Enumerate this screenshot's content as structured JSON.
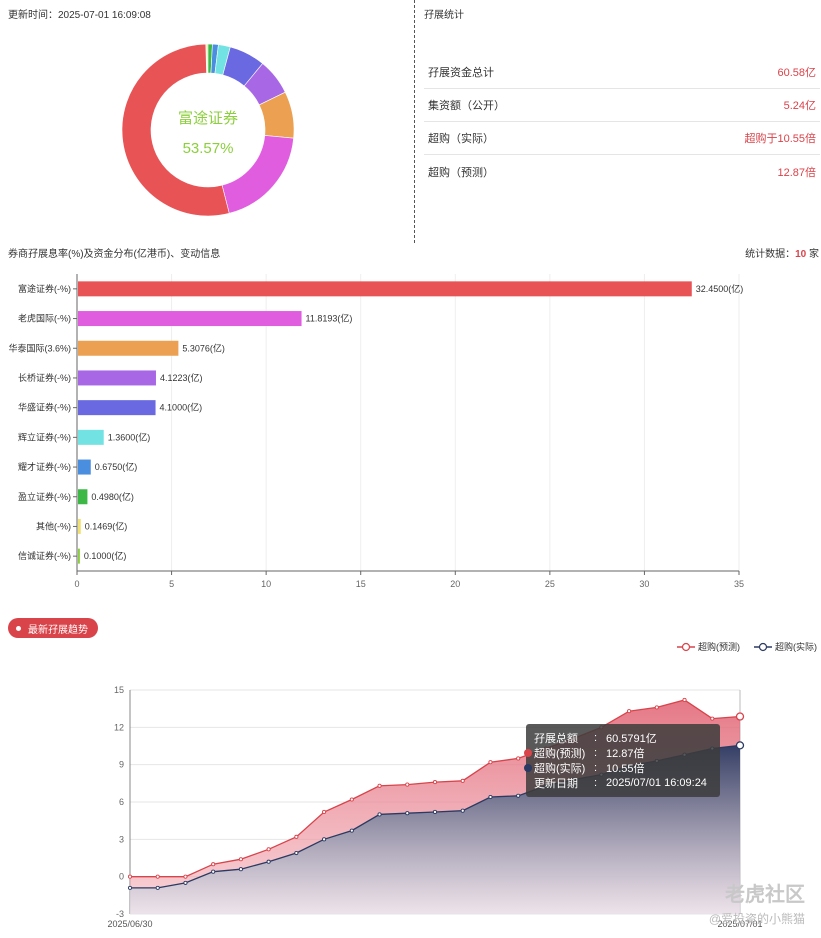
{
  "header": {
    "update_time": "更新时间：2025-07-01 16:09:08",
    "stats_title": "孖展统计"
  },
  "donut": {
    "center_name": "富途证券",
    "center_pct": "53.57%",
    "colors": {
      "main": "#e85456",
      "text": "#8ccf3c"
    },
    "slices": [
      {
        "name": "富途证券",
        "value": 32.45,
        "color": "#e85456"
      },
      {
        "name": "老虎国际",
        "value": 11.8193,
        "color": "#e05ddf"
      },
      {
        "name": "华泰国际",
        "value": 5.3076,
        "color": "#eba052"
      },
      {
        "name": "长桥证券",
        "value": 4.1223,
        "color": "#a868e6"
      },
      {
        "name": "华盛证券",
        "value": 4.1,
        "color": "#6a69e2"
      },
      {
        "name": "辉立证券",
        "value": 1.36,
        "color": "#72e2e2"
      },
      {
        "name": "耀才证券",
        "value": 0.675,
        "color": "#4a8ee0"
      },
      {
        "name": "盈立证券",
        "value": 0.498,
        "color": "#3db846"
      },
      {
        "name": "其他",
        "value": 0.1469,
        "color": "#f0e070"
      },
      {
        "name": "信诚证券",
        "value": 0.1,
        "color": "#8ccf3c"
      }
    ]
  },
  "stats": [
    {
      "label": "孖展资金总计",
      "value": "60.58亿"
    },
    {
      "label": "集资额（公开）",
      "value": "5.24亿"
    },
    {
      "label": "超购（实际）",
      "value": "超购于10.55倍"
    },
    {
      "label": "超购（预测）",
      "value": "12.87倍"
    }
  ],
  "bar_section": {
    "title": "券商孖展息率(%)及资金分布(亿港币)、变动信息",
    "count_prefix": "统计数据：",
    "count_value": "10",
    "count_suffix": " 家"
  },
  "chart_data": [
    {
      "type": "bar",
      "orientation": "horizontal",
      "categories": [
        "富途证券(-%)",
        "老虎国际(-%)",
        "华泰国际(3.6%)",
        "长桥证券(-%)",
        "华盛证券(-%)",
        "辉立证券(-%)",
        "耀才证券(-%)",
        "盈立证券(-%)",
        "其他(-%)",
        "信诚证券(-%)"
      ],
      "values": [
        32.45,
        11.8193,
        5.3076,
        4.1223,
        4.1,
        1.36,
        0.675,
        0.498,
        0.1469,
        0.1
      ],
      "value_labels": [
        "32.4500(亿)",
        "11.8193(亿)",
        "5.3076(亿)",
        "4.1223(亿)",
        "4.1000(亿)",
        "1.3600(亿)",
        "0.6750(亿)",
        "0.4980(亿)",
        "0.1469(亿)",
        "0.1000(亿)"
      ],
      "colors": [
        "#e85456",
        "#e05ddf",
        "#eba052",
        "#a868e6",
        "#6a69e2",
        "#72e2e2",
        "#4a8ee0",
        "#3db846",
        "#f0e070",
        "#8ccf3c"
      ],
      "xlim": [
        0,
        35
      ],
      "xticks": [
        0,
        5,
        10,
        15,
        20,
        25,
        30,
        35
      ],
      "grid": true
    },
    {
      "type": "area",
      "x_labels": [
        "2025/06/30",
        "2025/07/01"
      ],
      "yticks": [
        -3,
        0,
        3,
        6,
        9,
        12,
        15
      ],
      "ylim": [
        -3,
        15
      ],
      "grid": true,
      "series": [
        {
          "name": "超购(预测)",
          "color": "#d9434a",
          "values": [
            0,
            0,
            0,
            1.0,
            1.4,
            2.2,
            3.2,
            5.2,
            6.2,
            7.3,
            7.4,
            7.6,
            7.7,
            9.2,
            9.5,
            10.3,
            11.1,
            12.0,
            13.3,
            13.6,
            14.2,
            12.7,
            12.87
          ]
        },
        {
          "name": "超购(实际)",
          "color": "#2a3a62",
          "values": [
            -0.9,
            -0.9,
            -0.5,
            0.4,
            0.6,
            1.2,
            1.9,
            3.0,
            3.7,
            5.0,
            5.1,
            5.2,
            5.3,
            6.4,
            6.5,
            7.3,
            7.8,
            8.2,
            8.9,
            9.3,
            9.8,
            10.3,
            10.55
          ]
        }
      ]
    }
  ],
  "trend": {
    "badge": "最新孖展趋势",
    "legend": [
      "超购(预测)",
      "超购(实际)"
    ]
  },
  "tooltip": {
    "rows": [
      {
        "key": "孖展总额",
        "sep": ":",
        "value": "60.5791亿",
        "marker": ""
      },
      {
        "key": "超购(预测)",
        "sep": ":",
        "value": "12.87倍",
        "marker": "#d9434a"
      },
      {
        "key": "超购(实际)",
        "sep": ":",
        "value": "10.55倍",
        "marker": "#2a3a62"
      },
      {
        "key": "更新日期",
        "sep": ":",
        "value": "2025/07/01 16:09:24",
        "marker": ""
      }
    ]
  },
  "watermark": {
    "brand": "老虎社区",
    "author": "@爱投资的小熊猫"
  }
}
